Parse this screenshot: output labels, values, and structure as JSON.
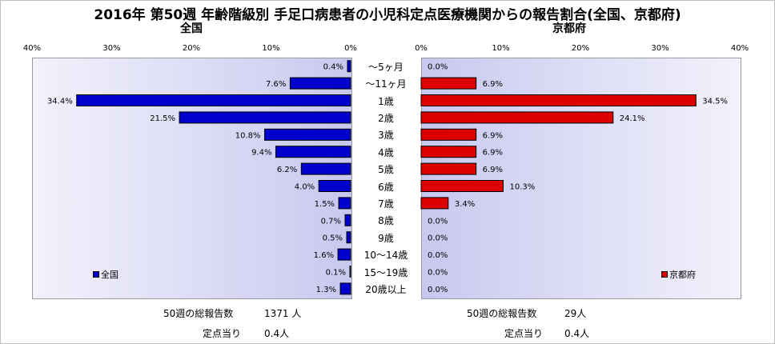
{
  "title": "2016年 第50週 年齢階級別 手足口病患者の小児科定点医療機関からの報告割合(全国、京都府)",
  "left_panel": {
    "subtitle": "全国",
    "legend": "全国",
    "ticks": [
      "40%",
      "30%",
      "20%",
      "10%",
      "0%"
    ],
    "footer": {
      "reports_label": "50週の総報告数",
      "reports_value": "1371 人",
      "per_label": "定点当り",
      "per_value": "0.4人"
    }
  },
  "right_panel": {
    "subtitle": "京都府",
    "legend": "京都府",
    "ticks": [
      "0%",
      "10%",
      "20%",
      "30%",
      "40%"
    ],
    "footer": {
      "reports_label": "50週の総報告数",
      "reports_value": "29人",
      "per_label": "定点当り",
      "per_value": "0.4人"
    }
  },
  "colors": {
    "national": "#0000cc",
    "kyoto": "#dd0000"
  },
  "chart_data": [
    {
      "type": "bar",
      "orientation": "horizontal",
      "direction": "right-to-left",
      "title": "全国",
      "categories": [
        "～5ヶ月",
        "～11ヶ月",
        "1歳",
        "2歳",
        "3歳",
        "4歳",
        "5歳",
        "6歳",
        "7歳",
        "8歳",
        "9歳",
        "10～14歳",
        "15～19歳",
        "20歳以上"
      ],
      "values": [
        0.4,
        7.6,
        34.4,
        21.5,
        10.8,
        9.4,
        6.2,
        4.0,
        1.5,
        0.7,
        0.5,
        1.6,
        0.1,
        1.3
      ],
      "labels": [
        "0.4%",
        "7.6%",
        "34.4%",
        "21.5%",
        "10.8%",
        "9.4%",
        "6.2%",
        "4.0%",
        "1.5%",
        "0.7%",
        "0.5%",
        "1.6%",
        "0.1%",
        "1.3%"
      ],
      "xlim": [
        0,
        40
      ],
      "legend_position": "bottom-left",
      "grid": false
    },
    {
      "type": "bar",
      "orientation": "horizontal",
      "direction": "left-to-right",
      "title": "京都府",
      "categories": [
        "～5ヶ月",
        "～11ヶ月",
        "1歳",
        "2歳",
        "3歳",
        "4歳",
        "5歳",
        "6歳",
        "7歳",
        "8歳",
        "9歳",
        "10～14歳",
        "15～19歳",
        "20歳以上"
      ],
      "values": [
        0.0,
        6.9,
        34.5,
        24.1,
        6.9,
        6.9,
        6.9,
        10.3,
        3.4,
        0.0,
        0.0,
        0.0,
        0.0,
        0.0
      ],
      "labels": [
        "0.0%",
        "6.9%",
        "34.5%",
        "24.1%",
        "6.9%",
        "6.9%",
        "6.9%",
        "10.3%",
        "3.4%",
        "0.0%",
        "0.0%",
        "0.0%",
        "0.0%",
        "0.0%"
      ],
      "xlim": [
        0,
        40
      ],
      "legend_position": "bottom-right",
      "grid": false
    }
  ]
}
